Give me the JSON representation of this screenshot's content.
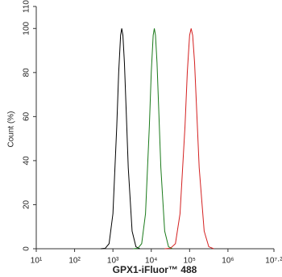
{
  "chart_data": {
    "type": "line",
    "x_label": "GPX1-iFluor™ 488",
    "y_label": "Count  (%)",
    "xscale": "log",
    "xlim": [
      10,
      15848932
    ],
    "xticks": [
      {
        "value": 10,
        "label": "10¹"
      },
      {
        "value": 100,
        "label": "10²"
      },
      {
        "value": 1000,
        "label": "10³"
      },
      {
        "value": 10000,
        "label": "10⁴"
      },
      {
        "value": 100000,
        "label": "10⁵"
      },
      {
        "value": 1000000,
        "label": "10⁶"
      },
      {
        "value": 15848932,
        "label": "10⁷·²"
      }
    ],
    "ylim": [
      0,
      110
    ],
    "yticks": [
      0,
      20,
      40,
      60,
      80,
      100,
      110
    ],
    "series": [
      {
        "color": "#000000",
        "x": [
          479,
          631,
          794,
          1000,
          1259,
          1413,
          1585,
          1698,
          1820,
          1995,
          2239,
          2512,
          3162,
          3981,
          5012
        ],
        "values": [
          0,
          0.2,
          2.3,
          15.9,
          55.6,
          80.1,
          96.9,
          100,
          96.9,
          84.4,
          60.7,
          36.8,
          8,
          0.9,
          0
        ]
      },
      {
        "color": "#1a7a1a",
        "x": [
          3388,
          4467,
          5623,
          7079,
          8913,
          10000,
          11220,
          12023,
          12882,
          14125,
          15849,
          17783,
          22387,
          28184,
          35481
        ],
        "values": [
          0,
          0.2,
          2.3,
          15.9,
          55.6,
          80.1,
          96.9,
          100,
          96.9,
          84.4,
          60.7,
          36.8,
          8,
          0.9,
          0
        ]
      },
      {
        "color": "#d42020",
        "x": [
          22387,
          31623,
          42658,
          56234,
          75858,
          87096,
          100000,
          109648,
          120226,
          134896,
          154882,
          177828,
          239883,
          316228,
          426580
        ],
        "values": [
          0,
          0.2,
          2.3,
          15.9,
          55.6,
          80.1,
          96.9,
          100,
          96.9,
          84.4,
          60.7,
          36.8,
          8,
          0.9,
          0
        ]
      }
    ]
  }
}
